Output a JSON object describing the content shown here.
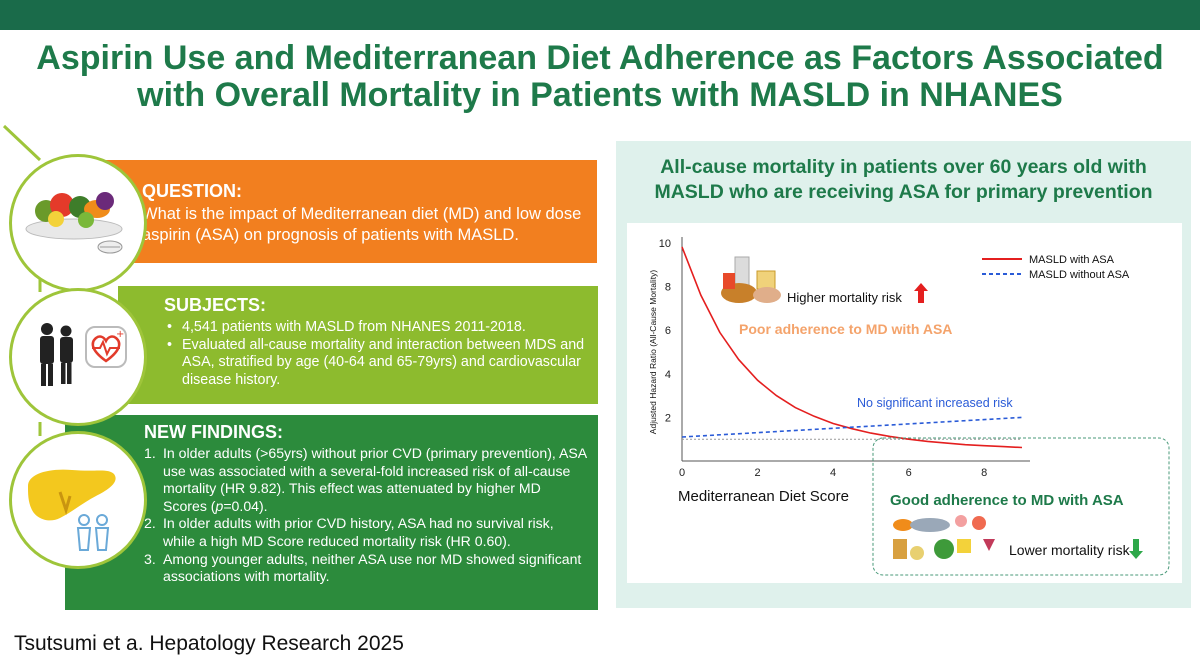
{
  "title_line1": "Aspirin Use and Mediterranean Diet Adherence as Factors Associated",
  "title_line2": "with Overall Mortality in Patients with MASLD in NHANES",
  "question": {
    "heading": "QUESTION",
    "text": "What is the impact of Mediterranean diet (MD) and low dose aspirin (ASA) on prognosis of patients with MASLD."
  },
  "subjects": {
    "heading": "SUBJECTS",
    "items": [
      "4,541 patients with MASLD from NHANES 2011-2018.",
      "Evaluated all-cause mortality and interaction between MDS and ASA, stratified by age (40-64 and 65-79yrs) and cardiovascular disease history."
    ]
  },
  "findings": {
    "heading": "NEW FINDINGS",
    "items": [
      {
        "num": "1.",
        "before": "In older adults (>65yrs) without prior CVD (primary prevention), ASA use was associated with a several-fold increased risk of all-cause mortality (HR 9.82). This effect was attenuated by higher MD Scores (",
        "italic": "p",
        "after": "=0.04)."
      },
      {
        "num": "2.",
        "before": "In older adults with prior CVD history, ASA had no survival risk, while a high MD Score reduced mortality risk (HR 0.60).",
        "italic": "",
        "after": ""
      },
      {
        "num": "3.",
        "before": "Among younger adults, neither ASA use nor MD showed significant associations with mortality.",
        "italic": "",
        "after": ""
      }
    ]
  },
  "citation": "Tsutsumi et a. Hepatology Research 2025",
  "right_title_line1": "All-cause mortality in patients over 60 years old with",
  "right_title_line2": "MASLD who are receiving ASA for primary prevention",
  "colors": {
    "red": "#e41f1f",
    "blue": "#2a5bd7",
    "green": "#1e7a4a",
    "orange": "#f4a36b"
  },
  "chart_data": {
    "type": "line",
    "xlabel": "Mediterranean Diet Score",
    "ylabel": "Adjusted Hazard Ratio (All-Cause Mortality)",
    "xlim": [
      0,
      9
    ],
    "ylim": [
      0,
      10
    ],
    "x_ticks": [
      "0",
      "2",
      "4",
      "6",
      "8"
    ],
    "y_ticks": [
      "2",
      "4",
      "6",
      "8",
      "10"
    ],
    "series": [
      {
        "name": "MASLD with ASA",
        "style": "solid",
        "color": "#e41f1f",
        "x": [
          0,
          0.5,
          1,
          1.5,
          2,
          2.5,
          3,
          3.5,
          4,
          4.5,
          5,
          5.5,
          6,
          6.5,
          7,
          7.5,
          8,
          8.5,
          9
        ],
        "y": [
          9.82,
          7.6,
          5.9,
          4.65,
          3.7,
          3.0,
          2.45,
          2.05,
          1.72,
          1.48,
          1.28,
          1.13,
          1.0,
          0.9,
          0.82,
          0.75,
          0.7,
          0.66,
          0.62
        ]
      },
      {
        "name": "MASLD without ASA",
        "style": "dashed",
        "color": "#2a5bd7",
        "x": [
          0,
          9
        ],
        "y": [
          1.1,
          2.0
        ]
      }
    ],
    "reference_line": 1,
    "annotations": {
      "higher_risk": "Higher mortality risk",
      "poor_adherence": "Poor adherence to MD with ASA",
      "no_sig": "No significant increased risk",
      "good_adherence": "Good adherence to MD with ASA",
      "lower_risk": "Lower mortality risk"
    }
  }
}
